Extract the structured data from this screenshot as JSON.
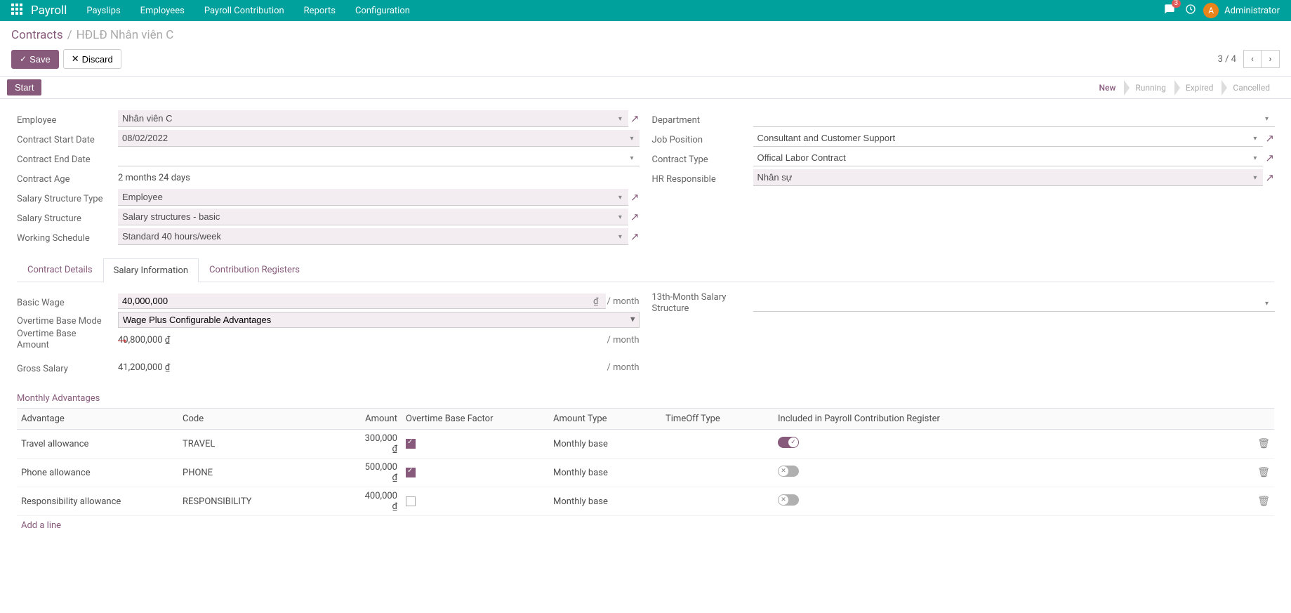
{
  "topnav": {
    "brand": "Payroll",
    "menu": [
      "Payslips",
      "Employees",
      "Payroll Contribution",
      "Reports",
      "Configuration"
    ],
    "msg_badge": "3",
    "avatar_letter": "A",
    "username": "Administrator"
  },
  "breadcrumb": {
    "link": "Contracts",
    "current": "HĐLĐ Nhân viên C"
  },
  "actions": {
    "save": "Save",
    "discard": "Discard",
    "pager": "3 / 4"
  },
  "status": {
    "start": "Start",
    "steps": [
      "New",
      "Running",
      "Expired",
      "Cancelled"
    ],
    "active_index": 0
  },
  "form": {
    "left": {
      "employee_label": "Employee",
      "employee": "Nhân viên C",
      "start_label": "Contract Start Date",
      "start": "08/02/2022",
      "end_label": "Contract End Date",
      "end": "",
      "age_label": "Contract Age",
      "age": "2 months 24 days",
      "struct_type_label": "Salary Structure Type",
      "struct_type": "Employee",
      "struct_label": "Salary Structure",
      "struct": "Salary structures - basic",
      "sched_label": "Working Schedule",
      "sched": "Standard 40 hours/week"
    },
    "right": {
      "dept_label": "Department",
      "dept": "",
      "pos_label": "Job Position",
      "pos": "Consultant and Customer Support",
      "ctype_label": "Contract Type",
      "ctype": "Offical Labor Contract",
      "hr_label": "HR Responsible",
      "hr": "Nhân sự"
    }
  },
  "tabs": [
    "Contract Details",
    "Salary Information",
    "Contribution Registers"
  ],
  "salary": {
    "basic_label": "Basic Wage",
    "basic": "40,000,000",
    "basic_cur": "₫",
    "per": "/ month",
    "ot_mode_label": "Overtime Base Mode",
    "ot_mode": "Wage Plus Configurable Advantages",
    "ot_amt_label": "Overtime Base Amount",
    "ot_amt": "40,800,000 ₫",
    "gross_label": "Gross Salary",
    "gross": "41,200,000 ₫",
    "thirteenth_label": "13th-Month Salary Structure",
    "thirteenth": ""
  },
  "advantages": {
    "section": "Monthly Advantages",
    "cols": [
      "Advantage",
      "Code",
      "Amount",
      "Overtime Base Factor",
      "Amount Type",
      "TimeOff Type",
      "Included in Payroll Contribution Register"
    ],
    "rows": [
      {
        "advantage": "Travel allowance",
        "code": "TRAVEL",
        "amount": "300,000 ₫",
        "ot_factor_checked": true,
        "amount_type": "Monthly base",
        "timeoff": "",
        "included": true
      },
      {
        "advantage": "Phone allowance",
        "code": "PHONE",
        "amount": "500,000 ₫",
        "ot_factor_checked": true,
        "amount_type": "Monthly base",
        "timeoff": "",
        "included": false
      },
      {
        "advantage": "Responsibility allowance",
        "code": "RESPONSIBILITY",
        "amount": "400,000 ₫",
        "ot_factor_checked": false,
        "amount_type": "Monthly base",
        "timeoff": "",
        "included": false
      }
    ],
    "add_line": "Add a line"
  },
  "colors": {
    "brand": "#875a7b",
    "teal": "#00a09d",
    "field_bg": "#f3ecf1"
  }
}
